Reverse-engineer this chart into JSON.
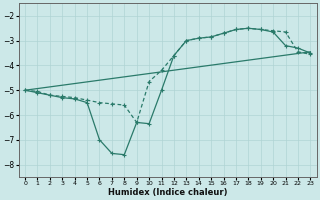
{
  "xlabel": "Humidex (Indice chaleur)",
  "xlim": [
    -0.5,
    23.5
  ],
  "ylim": [
    -8.5,
    -1.5
  ],
  "yticks": [
    -8,
    -7,
    -6,
    -5,
    -4,
    -3,
    -2
  ],
  "xticks": [
    0,
    1,
    2,
    3,
    4,
    5,
    6,
    7,
    8,
    9,
    10,
    11,
    12,
    13,
    14,
    15,
    16,
    17,
    18,
    19,
    20,
    21,
    22,
    23
  ],
  "bg_color": "#cce8e8",
  "line_color": "#2a7a6a",
  "grid_color": "#b0d4d4",
  "line1": {
    "x": [
      0,
      1,
      2,
      3,
      4,
      5,
      6,
      7,
      8,
      9,
      10,
      11,
      12,
      13,
      14,
      15,
      16,
      17,
      18,
      19,
      20,
      21,
      22,
      23
    ],
    "y": [
      -5.0,
      -5.1,
      -5.2,
      -5.3,
      -5.35,
      -5.5,
      -7.0,
      -7.55,
      -7.6,
      -6.3,
      -6.35,
      -5.0,
      -3.6,
      -3.0,
      -2.9,
      -2.85,
      -2.7,
      -2.55,
      -2.5,
      -2.55,
      -2.65,
      -3.2,
      -3.3,
      -3.5
    ],
    "linestyle": "-",
    "marker": "+"
  },
  "line2": {
    "x": [
      0,
      1,
      2,
      3,
      4,
      5,
      6,
      7,
      8,
      9,
      10,
      11,
      12,
      13,
      14,
      15,
      16,
      17,
      18,
      19,
      20,
      21,
      22,
      23
    ],
    "y": [
      -5.0,
      -5.05,
      -5.2,
      -5.25,
      -5.3,
      -5.4,
      -5.5,
      -5.55,
      -5.6,
      -6.3,
      -4.65,
      -4.2,
      -3.6,
      -3.0,
      -2.9,
      -2.85,
      -2.7,
      -2.55,
      -2.5,
      -2.55,
      -2.6,
      -2.65,
      -3.45,
      -3.55
    ],
    "linestyle": "--",
    "marker": "+"
  },
  "line3": {
    "x": [
      0,
      23
    ],
    "y": [
      -5.0,
      -3.45
    ],
    "linestyle": "-",
    "marker": "+"
  }
}
